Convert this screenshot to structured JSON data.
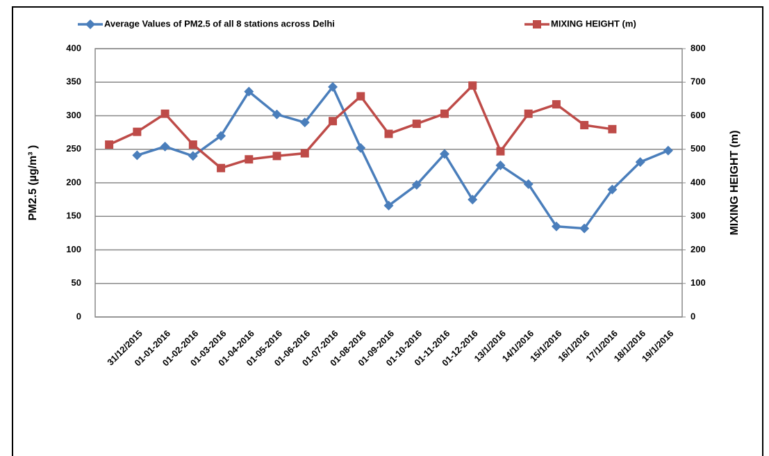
{
  "chart_data": {
    "type": "line",
    "categories": [
      null,
      "31/12/2015",
      "01-01-2016",
      "01-02-2016",
      "01-03-2016",
      "01-04-2016",
      "01-05-2016",
      "01-06-2016",
      "01-07-2016",
      "01-08-2016",
      "01-09-2016",
      "01-10-2016",
      "01-11-2016",
      "01-12-2016",
      "13/1/2016",
      "14/1/2016",
      "15/1/2016",
      "16/1/2016",
      "17/1/2016",
      "18/1/2016",
      "19/1/2016"
    ],
    "series": [
      {
        "name": "Average Values of PM2.5 of all 8 stations across Delhi",
        "color": "#4a7ebb",
        "marker": "diamond",
        "values": [
          null,
          241,
          254,
          240,
          270,
          336,
          302,
          290,
          343,
          252,
          166,
          197,
          243,
          175,
          226,
          198,
          135,
          132,
          190,
          231,
          248
        ]
      },
      {
        "name": "MIXING HEIGHT (m)",
        "color": "#be4b48",
        "marker": "square",
        "axis": "y2",
        "values": [
          514,
          552,
          606,
          514,
          444,
          470,
          480,
          488,
          584,
          658,
          546,
          576,
          606,
          690,
          494,
          606,
          634,
          572,
          560,
          null,
          null
        ]
      }
    ],
    "ylabel": "PM2.5 (µg/m³ )",
    "y2label": "MIXING HEIGHT (m)",
    "ylim": [
      0,
      400
    ],
    "yticks": [
      0,
      50,
      100,
      150,
      200,
      250,
      300,
      350,
      400
    ],
    "y2lim": [
      0,
      800
    ],
    "y2ticks": [
      0,
      100,
      200,
      300,
      400,
      500,
      600,
      700,
      800
    ],
    "grid": true
  }
}
